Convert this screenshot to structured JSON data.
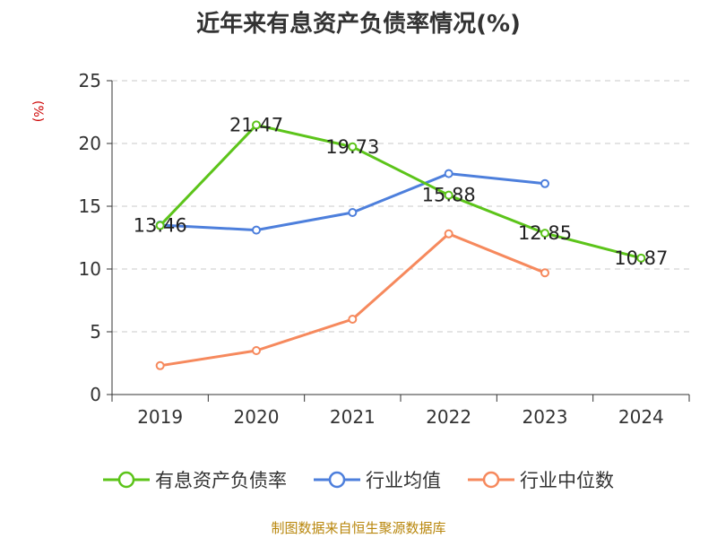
{
  "chart_data": {
    "type": "line",
    "title": "近年来有息资产负债率情况(%)",
    "ylabel": "(%)",
    "xlabel": "",
    "categories": [
      "2019",
      "2020",
      "2021",
      "2022",
      "2023",
      "2024"
    ],
    "ylim": [
      0,
      25
    ],
    "yticks": [
      0,
      5,
      10,
      15,
      20,
      25
    ],
    "grid": true,
    "legend_position": "bottom",
    "series": [
      {
        "name": "有息资产负债率",
        "color": "#5cc41a",
        "values": [
          13.46,
          21.47,
          19.73,
          15.88,
          12.85,
          10.87
        ],
        "labels": [
          "13.46",
          "21.47",
          "19.73",
          "15.88",
          "12.85",
          "10.87"
        ]
      },
      {
        "name": "行业均值",
        "color": "#4d7fdc",
        "values": [
          13.5,
          13.1,
          14.5,
          17.6,
          16.8,
          null
        ]
      },
      {
        "name": "行业中位数",
        "color": "#f6895d",
        "values": [
          2.3,
          3.5,
          6.0,
          12.8,
          9.7,
          null
        ]
      }
    ]
  },
  "source": "制图数据来自恒生聚源数据库"
}
